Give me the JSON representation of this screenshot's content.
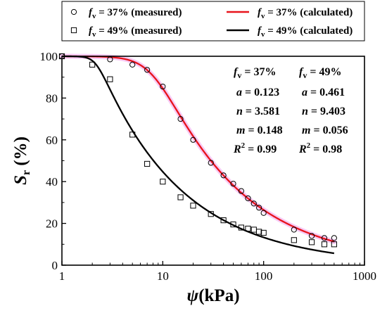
{
  "chart_data": {
    "type": "scatter",
    "xscale": "log",
    "xlim": [
      1,
      1000
    ],
    "ylim": [
      0,
      100
    ],
    "xticks": [
      1,
      10,
      100,
      1000
    ],
    "yticks": [
      0,
      20,
      40,
      60,
      80,
      100
    ],
    "xlabel": {
      "symbol": "ψ",
      "unit": "(kPa)"
    },
    "ylabel": {
      "symbol": "S",
      "sub": "r",
      "unit": "(%)"
    },
    "grid": false,
    "legend_position": "top, outside plot (2 columns, boxed)",
    "legend": [
      {
        "symbol_var": "f",
        "sub": "v",
        "text": " = 37% (measured)",
        "marker": "circle"
      },
      {
        "symbol_var": "f",
        "sub": "v",
        "text": " = 37% (calculated)",
        "line_color": "#e8141c"
      },
      {
        "symbol_var": "f",
        "sub": "v",
        "text": " = 49% (measured)",
        "marker": "square"
      },
      {
        "symbol_var": "f",
        "sub": "v",
        "text": " = 49% (calculated)",
        "line_color": "#000000"
      }
    ],
    "series": [
      {
        "name": "fv = 37% (measured)",
        "kind": "scatter",
        "marker": "circle",
        "x": [
          1,
          3,
          5,
          7,
          10,
          15,
          20,
          30,
          40,
          50,
          60,
          70,
          80,
          90,
          100,
          200,
          300,
          400,
          500
        ],
        "y": [
          100,
          98.5,
          96,
          93.5,
          85.5,
          70,
          60,
          49,
          43,
          39,
          35.5,
          32,
          29.5,
          27.5,
          25,
          17,
          14,
          13,
          13
        ]
      },
      {
        "name": "fv = 49% (measured)",
        "kind": "scatter",
        "marker": "square",
        "x": [
          1,
          2,
          3,
          5,
          7,
          10,
          15,
          20,
          30,
          40,
          50,
          60,
          70,
          80,
          90,
          100,
          200,
          300,
          400,
          500
        ],
        "y": [
          100,
          96,
          89,
          62.5,
          48.5,
          40,
          32.5,
          28.5,
          24.5,
          21.5,
          19.5,
          18,
          17.5,
          17,
          16,
          15.5,
          12,
          11,
          10,
          10
        ]
      },
      {
        "name": "fv = 37% (calculated)",
        "kind": "line",
        "color": "#e8141c",
        "highlight_color": "#f2a6ee",
        "model": {
          "a": 0.123,
          "n": 3.581,
          "m": 0.148
        },
        "x_range": [
          1,
          500
        ]
      },
      {
        "name": "fv = 49% (calculated)",
        "kind": "line",
        "color": "#000000",
        "model": {
          "a": 0.461,
          "n": 9.403,
          "m": 0.056
        },
        "x_range": [
          1,
          500
        ]
      }
    ],
    "parameter_table": {
      "columns": [
        {
          "var": "f",
          "sub": "v",
          "value": " = 37%"
        },
        {
          "var": "f",
          "sub": "v",
          "value": " = 49%"
        }
      ],
      "rows": [
        {
          "var": "a",
          "values": [
            " = 0.123",
            " = 0.461"
          ]
        },
        {
          "var": "n",
          "values": [
            " = 3.581",
            " = 9.403"
          ]
        },
        {
          "var": "m",
          "values": [
            " = 0.148",
            " = 0.056"
          ]
        },
        {
          "var": "R",
          "sup": "2",
          "values": [
            " = 0.99",
            " = 0.98"
          ]
        }
      ]
    }
  }
}
